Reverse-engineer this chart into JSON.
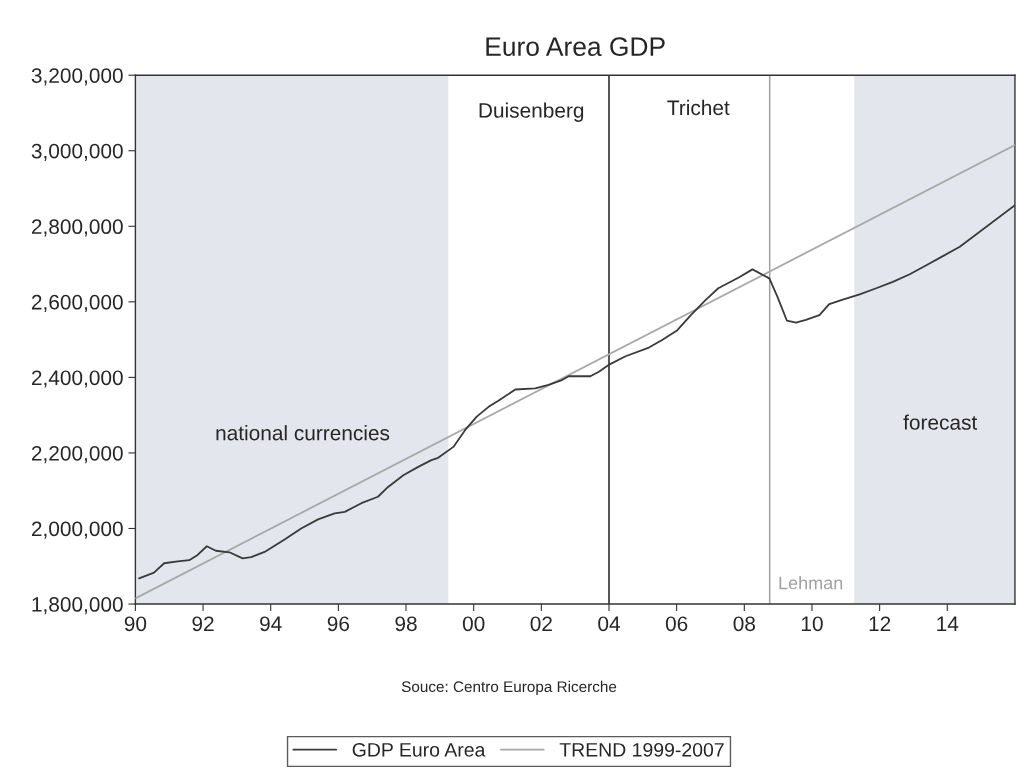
{
  "chart_data": {
    "type": "line",
    "title": "Euro Area GDP",
    "xlim": [
      1990.0,
      2016.0
    ],
    "xticks": [
      {
        "value": 1990,
        "label": "90"
      },
      {
        "value": 1992,
        "label": "92"
      },
      {
        "value": 1994,
        "label": "94"
      },
      {
        "value": 1996,
        "label": "96"
      },
      {
        "value": 1998,
        "label": "98"
      },
      {
        "value": 2000,
        "label": "00"
      },
      {
        "value": 2002,
        "label": "02"
      },
      {
        "value": 2004,
        "label": "04"
      },
      {
        "value": 2006,
        "label": "06"
      },
      {
        "value": 2008,
        "label": "08"
      },
      {
        "value": 2010,
        "label": "10"
      },
      {
        "value": 2012,
        "label": "12"
      },
      {
        "value": 2014,
        "label": "14"
      }
    ],
    "ylim": [
      1800000,
      3200000
    ],
    "yticks": [
      {
        "value": 1800000,
        "label": "1,800,000"
      },
      {
        "value": 2000000,
        "label": "2,000,000"
      },
      {
        "value": 2200000,
        "label": "2,200,000"
      },
      {
        "value": 2400000,
        "label": "2,400,000"
      },
      {
        "value": 2600000,
        "label": "2,600,000"
      },
      {
        "value": 2800000,
        "label": "2,800,000"
      },
      {
        "value": 3000000,
        "label": "3,000,000"
      },
      {
        "value": 3200000,
        "label": "3,200,000"
      }
    ],
    "series": [
      {
        "name": "GDP Euro Area",
        "color": "#3a3a3a",
        "x": [
          1990.11,
          1990.55,
          1990.85,
          1991.19,
          1991.59,
          1991.84,
          1992.11,
          1992.38,
          1992.78,
          1993.17,
          1993.42,
          1993.82,
          1994.41,
          1994.9,
          1995.4,
          1995.89,
          1996.19,
          1996.68,
          1997.17,
          1997.47,
          1997.92,
          1998.36,
          1998.75,
          1998.95,
          1999.4,
          1999.75,
          2000.09,
          2000.44,
          2000.73,
          2001.23,
          2001.82,
          2002.21,
          2002.61,
          2002.81,
          2003.45,
          2003.7,
          2003.99,
          2004.49,
          2005.18,
          2005.57,
          2006.02,
          2006.42,
          2006.86,
          2007.23,
          2007.85,
          2008.24,
          2008.74,
          2008.98,
          2009.26,
          2009.53,
          2009.82,
          2010.22,
          2010.51,
          2010.91,
          2011.41,
          2011.9,
          2012.39,
          2012.89,
          2013.38,
          2013.87,
          2014.37,
          2016.0
        ],
        "values": [
          1868000,
          1883000,
          1908000,
          1912000,
          1916000,
          1930000,
          1953000,
          1941000,
          1937000,
          1921000,
          1924000,
          1938000,
          1971000,
          2000000,
          2024000,
          2040000,
          2044000,
          2067000,
          2084000,
          2110000,
          2141000,
          2163000,
          2181000,
          2187000,
          2216000,
          2261000,
          2296000,
          2322000,
          2338000,
          2368000,
          2371000,
          2380000,
          2393000,
          2403000,
          2403000,
          2415000,
          2433000,
          2456000,
          2479000,
          2499000,
          2525000,
          2565000,
          2605000,
          2636000,
          2665000,
          2686000,
          2662000,
          2613000,
          2550000,
          2545000,
          2552000,
          2565000,
          2594000,
          2606000,
          2620000,
          2636000,
          2653000,
          2673000,
          2697000,
          2721000,
          2746000,
          2856000
        ]
      },
      {
        "name": "TREND 1999-2007",
        "color": "#a8a8a8",
        "x": [
          1990.0,
          2016.0
        ],
        "values": [
          1815000,
          3015000
        ]
      }
    ],
    "bands": [
      {
        "axis": "x",
        "from": 1990.0,
        "to": 1999.25,
        "color": "#e4e6ee"
      },
      {
        "axis": "x",
        "from": 2011.25,
        "to": 2016.0,
        "color": "#e4e6ee"
      }
    ],
    "ref_lines": [
      {
        "axis": "x",
        "value": 2004.0,
        "color": "#222222"
      },
      {
        "axis": "x",
        "value": 2008.75,
        "color": "#a0a0a0",
        "label": "Lehman"
      }
    ],
    "annotations": [
      "Duisenberg",
      "Trichet",
      "national currencies",
      "forecast",
      "Souce: Centro Europa Ricerche"
    ],
    "grid": false,
    "legend": "bottom",
    "line_style": "solid",
    "marker": "none"
  }
}
